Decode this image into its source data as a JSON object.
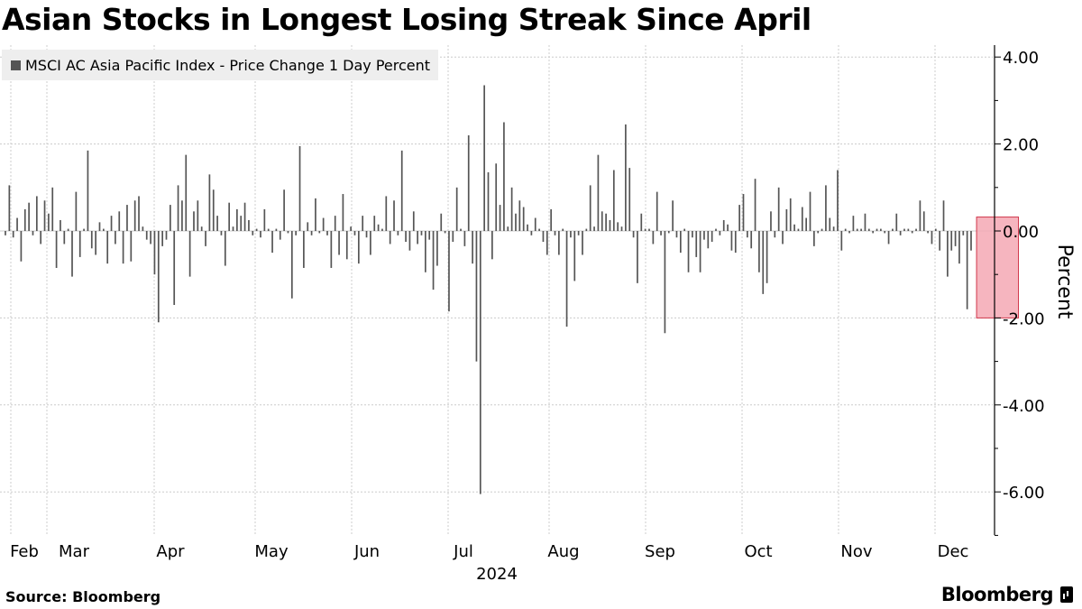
{
  "header": {
    "title": "Asian Stocks in Longest Losing Streak Since April"
  },
  "footer": {
    "source": "Source: Bloomberg",
    "brand": "Bloomberg"
  },
  "colors": {
    "bar": "#555555",
    "highlight_fill": "#f4a8b4",
    "highlight_stroke": "#d0364a",
    "grid": "#cccccc"
  },
  "chart_data": {
    "type": "bar",
    "legend": "MSCI AC Asia Pacific Index - Price Change 1 Day Percent",
    "ylabel": "Percent",
    "xlabel": "2024",
    "ylim": [
      -7.0,
      4.3
    ],
    "yticks": [
      4.0,
      2.0,
      0.0,
      -2.0,
      -4.0,
      -6.0
    ],
    "ytick_labels": [
      "4.00",
      "2.00",
      "0.00",
      "-2.00",
      "-4.00",
      "-6.00"
    ],
    "month_labels": [
      "Feb",
      "Mar",
      "Apr",
      "May",
      "Jun",
      "Jul",
      "Aug",
      "Sep",
      "Oct",
      "Nov",
      "Dec"
    ],
    "year_label": "2024",
    "grid": true,
    "highlight": {
      "from_index": 249,
      "to_index": 256,
      "ymin": -2.0,
      "ymax": 0.32
    },
    "values": [
      -0.1,
      1.05,
      -0.15,
      0.3,
      -0.7,
      0.5,
      0.65,
      -0.1,
      0.8,
      -0.3,
      0.7,
      0.4,
      1.0,
      -0.85,
      0.25,
      -0.3,
      0.05,
      -1.05,
      0.9,
      -0.6,
      0.05,
      1.85,
      -0.4,
      -0.55,
      0.2,
      0.05,
      -0.75,
      0.35,
      -0.3,
      0.45,
      -0.75,
      0.6,
      -0.7,
      0.7,
      0.8,
      0.1,
      -0.2,
      -0.3,
      -1.0,
      -2.1,
      -0.35,
      -0.2,
      0.6,
      -1.7,
      1.05,
      0.7,
      1.75,
      -1.05,
      0.45,
      0.7,
      0.1,
      -0.35,
      1.3,
      0.95,
      0.35,
      -0.1,
      -0.8,
      0.65,
      0.1,
      0.5,
      0.35,
      0.65,
      0.25,
      -0.1,
      0.05,
      -0.15,
      0.5,
      0.05,
      -0.5,
      0.05,
      -0.2,
      0.95,
      -0.05,
      -1.55,
      -0.1,
      1.95,
      -0.85,
      0.2,
      -0.1,
      0.75,
      -0.05,
      0.3,
      -0.1,
      -0.85,
      0.35,
      -0.55,
      0.85,
      -0.65,
      0.1,
      -0.1,
      -0.75,
      0.35,
      -0.15,
      -0.55,
      0.35,
      0.15,
      0.05,
      0.8,
      -0.3,
      0.7,
      -0.1,
      1.85,
      -0.25,
      -0.45,
      0.45,
      -0.3,
      -0.1,
      -0.95,
      -0.2,
      -1.35,
      -0.8,
      0.4,
      -0.05,
      -1.85,
      -0.25,
      1.0,
      0.05,
      -0.35,
      2.2,
      -0.75,
      -3.0,
      -6.05,
      3.35,
      1.35,
      -0.65,
      1.55,
      0.6,
      2.5,
      0.1,
      1.0,
      0.4,
      0.7,
      0.55,
      0.15,
      -0.1,
      0.3,
      0.05,
      -0.25,
      -0.55,
      0.5,
      -0.1,
      -0.55,
      0.05,
      -2.2,
      -0.15,
      -1.15,
      -0.1,
      -0.55,
      0.05,
      1.05,
      0.1,
      1.75,
      0.45,
      0.4,
      0.25,
      1.4,
      0.2,
      0.1,
      2.45,
      1.45,
      -0.15,
      -1.2,
      0.4,
      0.05,
      0.05,
      -0.3,
      0.9,
      -0.1,
      -2.35,
      -0.05,
      0.7,
      -0.15,
      -0.5,
      0.05,
      -0.95,
      -0.15,
      -0.6,
      -0.95,
      -0.2,
      -0.4,
      -0.25,
      0.05,
      -0.1,
      0.25,
      0.15,
      -0.45,
      -0.5,
      0.6,
      0.85,
      -0.15,
      -0.4,
      1.2,
      -0.95,
      -1.45,
      -1.2,
      0.45,
      -0.15,
      1.0,
      -0.3,
      0.5,
      0.75,
      0.15,
      0.05,
      0.55,
      0.3,
      0.9,
      -0.35,
      -0.05,
      0.05,
      1.05,
      0.3,
      0.1,
      1.4,
      -0.45,
      0.05,
      -0.05,
      0.35,
      0.05,
      0.05,
      0.4,
      0.05,
      -0.05,
      0.05,
      0.05,
      -0.05,
      -0.3,
      0.05,
      0.4,
      -0.1,
      0.05,
      0.05,
      -0.05,
      0.05,
      0.7,
      0.45,
      -0.05,
      -0.3,
      0.05,
      -0.45,
      0.7,
      -1.05,
      -0.45,
      -0.35,
      -0.75,
      -0.1,
      -1.8,
      -0.45
    ]
  }
}
